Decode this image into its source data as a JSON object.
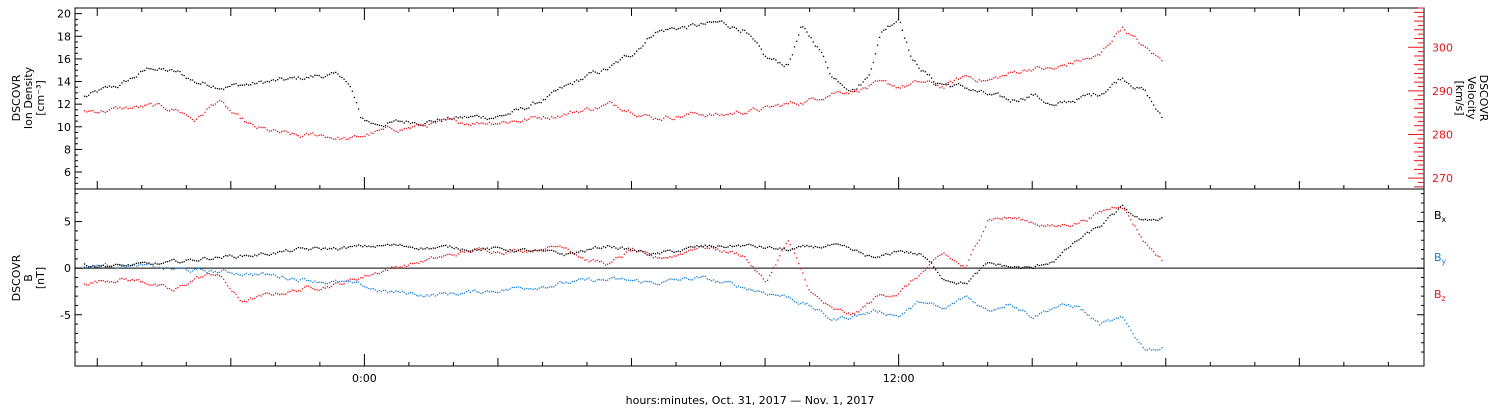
{
  "chart_data": [
    {
      "type": "scatter",
      "panel": "top",
      "ylabel_lines": [
        "DSCOVR",
        "Ion Density",
        "[cm⁻³]"
      ],
      "y2label_lines": [
        "DSCOVR",
        "Velocity",
        "[km/s]"
      ],
      "ylim": [
        4.5,
        20.5
      ],
      "y2lim": [
        267.5,
        309
      ],
      "yticks": [
        6,
        8,
        10,
        12,
        14,
        16,
        18,
        20
      ],
      "y2ticks": [
        270,
        280,
        290,
        300
      ],
      "colors": {
        "density": "#000000",
        "velocity": "#e8141b"
      },
      "series": [
        {
          "color": "#000000",
          "axis": "left",
          "x": [
            -6.3,
            -5.5,
            -4.8,
            -4.2,
            -3.8,
            -3.2,
            -2.6,
            -2.2,
            -1.6,
            -1.0,
            -0.5,
            -0.3,
            -0.1,
            0.2,
            1.0,
            2.0,
            3.0,
            3.5,
            4.2,
            5.0,
            5.5,
            6.0,
            6.5,
            7.0,
            7.5,
            8.0,
            8.5,
            9.0,
            9.5,
            9.8,
            10.2,
            10.5,
            10.8,
            11.0,
            11.3,
            11.6,
            12.0,
            12.3,
            12.8,
            13.5,
            14.0,
            14.5,
            15.0,
            15.5,
            16.0,
            16.5,
            17.0,
            17.5,
            17.9
          ],
          "y": [
            12.7,
            13.7,
            15.3,
            14.8,
            14.0,
            13.7,
            13.8,
            14.0,
            14.2,
            14.6,
            14.5,
            13.3,
            10.8,
            10.3,
            10.5,
            10.8,
            11.0,
            11.5,
            12.8,
            14.5,
            15.2,
            16.5,
            18.5,
            18.8,
            19.0,
            19.2,
            18.7,
            16.0,
            15.5,
            18.8,
            17.0,
            14.5,
            13.8,
            13.5,
            14.5,
            18.5,
            19.8,
            16.0,
            14.0,
            13.5,
            12.8,
            12.3,
            13.0,
            11.8,
            12.5,
            13.0,
            14.5,
            13.3,
            10.8
          ]
        },
        {
          "color": "#e8141b",
          "axis": "right",
          "x": [
            -6.3,
            -5.5,
            -4.8,
            -4.2,
            -3.8,
            -3.3,
            -2.9,
            -2.5,
            -2.0,
            -1.5,
            -1.0,
            -0.3,
            0.2,
            0.8,
            1.5,
            2.5,
            3.5,
            4.5,
            5.0,
            5.5,
            6.0,
            6.5,
            7.0,
            7.5,
            8.0,
            8.5,
            9.0,
            9.5,
            10.0,
            10.5,
            11.0,
            11.5,
            12.0,
            12.5,
            13.0,
            13.5,
            14.0,
            14.5,
            15.0,
            15.5,
            16.0,
            16.5,
            17.0,
            17.5,
            17.9
          ],
          "y": [
            285.5,
            286.0,
            286.5,
            285.8,
            283.5,
            288.0,
            284.0,
            281.5,
            280.5,
            279.5,
            280.0,
            279.0,
            280.5,
            281.5,
            282.5,
            283.0,
            283.5,
            285.0,
            286.0,
            287.0,
            286.0,
            284.0,
            284.5,
            285.0,
            284.5,
            285.5,
            286.0,
            287.0,
            288.0,
            290.0,
            290.5,
            291.5,
            291.0,
            292.0,
            291.0,
            293.5,
            292.5,
            294.0,
            295.5,
            295.0,
            297.0,
            298.0,
            305.0,
            300.0,
            297.0
          ]
        }
      ]
    },
    {
      "type": "scatter",
      "panel": "bottom",
      "ylabel_lines": [
        "DSCOVR",
        "B",
        "[nT]"
      ],
      "ylim": [
        -10.5,
        8.5
      ],
      "yticks": [
        -5,
        0,
        5
      ],
      "zero_line": true,
      "series": [
        {
          "name": "B",
          "sub": "x",
          "color": "#000000",
          "x": [
            -6.3,
            -5.5,
            -4.5,
            -3.5,
            -2.5,
            -1.5,
            -0.5,
            0.5,
            1.5,
            2.5,
            3.5,
            4.5,
            5.5,
            6.5,
            7.5,
            8.5,
            9.5,
            10.5,
            11.5,
            12.0,
            12.5,
            13.0,
            13.5,
            14.0,
            14.5,
            15.0,
            15.5,
            16.0,
            16.5,
            17.0,
            17.5,
            17.9
          ],
          "y": [
            0.5,
            0.3,
            0.5,
            1.2,
            1.5,
            2.0,
            2.2,
            2.5,
            2.3,
            2.2,
            2.0,
            1.5,
            2.5,
            1.5,
            2.3,
            2.5,
            2.0,
            2.5,
            1.0,
            2.0,
            1.5,
            -1.0,
            -1.5,
            0.5,
            0.2,
            0.0,
            1.0,
            3.0,
            4.5,
            6.5,
            5.0,
            5.5
          ]
        },
        {
          "name": "B",
          "sub": "y",
          "color": "#1a7fd4",
          "x": [
            -6.3,
            -5.5,
            -4.5,
            -3.5,
            -2.5,
            -1.5,
            -0.5,
            0.5,
            1.5,
            2.5,
            3.5,
            4.5,
            5.5,
            6.5,
            7.5,
            8.5,
            9.5,
            10.0,
            10.5,
            11.0,
            11.5,
            12.0,
            12.5,
            13.0,
            13.5,
            14.0,
            14.5,
            15.0,
            15.5,
            16.0,
            16.5,
            17.0,
            17.5,
            17.9
          ],
          "y": [
            0.2,
            0.5,
            0.0,
            -0.3,
            -0.5,
            -1.0,
            -1.5,
            -2.5,
            -2.8,
            -2.5,
            -2.0,
            -1.5,
            -1.2,
            -1.5,
            -1.0,
            -2.0,
            -3.0,
            -4.0,
            -5.5,
            -5.0,
            -4.5,
            -5.0,
            -3.5,
            -4.5,
            -3.0,
            -4.5,
            -3.5,
            -5.0,
            -4.0,
            -4.0,
            -6.0,
            -5.5,
            -8.5,
            -8.5
          ]
        },
        {
          "name": "B",
          "sub": "z",
          "color": "#e8141b",
          "x": [
            -6.3,
            -5.5,
            -4.8,
            -4.3,
            -3.8,
            -3.3,
            -2.8,
            -2.3,
            -1.8,
            -1.2,
            -0.5,
            0.5,
            1.5,
            2.5,
            3.5,
            4.5,
            5.0,
            5.5,
            6.0,
            6.5,
            7.0,
            7.5,
            8.0,
            8.5,
            9.0,
            9.5,
            10.0,
            10.5,
            11.0,
            11.5,
            12.0,
            12.5,
            13.0,
            13.5,
            14.0,
            14.5,
            15.0,
            15.5,
            16.0,
            16.5,
            17.0,
            17.5,
            17.9
          ],
          "y": [
            -1.5,
            -1.0,
            -1.5,
            -2.5,
            -1.0,
            -0.5,
            -3.5,
            -3.0,
            -2.5,
            -2.0,
            -1.5,
            0.0,
            1.0,
            2.0,
            2.0,
            2.5,
            1.0,
            0.5,
            2.0,
            1.0,
            1.5,
            2.5,
            2.0,
            1.5,
            -1.5,
            3.0,
            -2.5,
            -4.5,
            -5.0,
            -3.0,
            -2.5,
            -0.5,
            1.5,
            0.0,
            5.5,
            5.5,
            5.0,
            4.5,
            5.0,
            6.0,
            7.0,
            3.0,
            1.0
          ]
        }
      ]
    }
  ],
  "xaxis": {
    "xlim": [
      -6.5,
      23.8
    ],
    "ticks": [
      {
        "x": 0,
        "label": "0:00"
      },
      {
        "x": 12,
        "label": "12:00"
      }
    ],
    "xlabel": "hours:minutes, Oct. 31, 2017 — Nov.  1, 2017"
  }
}
